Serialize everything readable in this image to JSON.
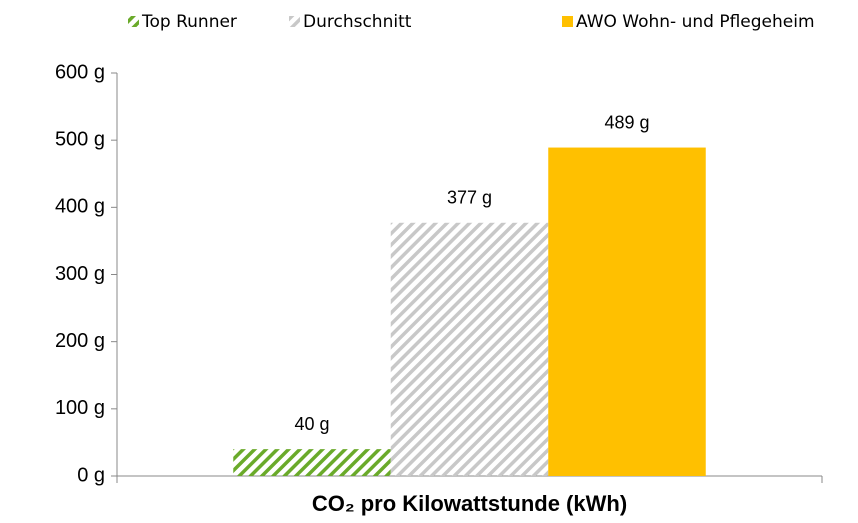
{
  "chart_data": {
    "type": "bar",
    "categories": [
      "CO₂ pro Kilowattstunde (kWh)"
    ],
    "series": [
      {
        "name": "Top Runner",
        "color": "#6aaa2a",
        "hatch": true,
        "values": [
          40
        ],
        "value_labels": [
          "40 g"
        ]
      },
      {
        "name": "Durchschnitt",
        "color": "#c8c8c8",
        "hatch": true,
        "values": [
          377
        ],
        "value_labels": [
          "377 g"
        ]
      },
      {
        "name": "AWO Wohn- und Pflegeheim",
        "color": "#ffc000",
        "hatch": false,
        "values": [
          489
        ],
        "value_labels": [
          "489 g"
        ]
      }
    ],
    "ylim": [
      0,
      600
    ],
    "yticks": [
      {
        "value": 0,
        "label": "0 g"
      },
      {
        "value": 100,
        "label": "100 g"
      },
      {
        "value": 200,
        "label": "200 g"
      },
      {
        "value": 300,
        "label": "300 g"
      },
      {
        "value": 400,
        "label": "400 g"
      },
      {
        "value": 500,
        "label": "500 g"
      },
      {
        "value": 600,
        "label": "600 g"
      }
    ],
    "grid": false,
    "legend": "top"
  }
}
